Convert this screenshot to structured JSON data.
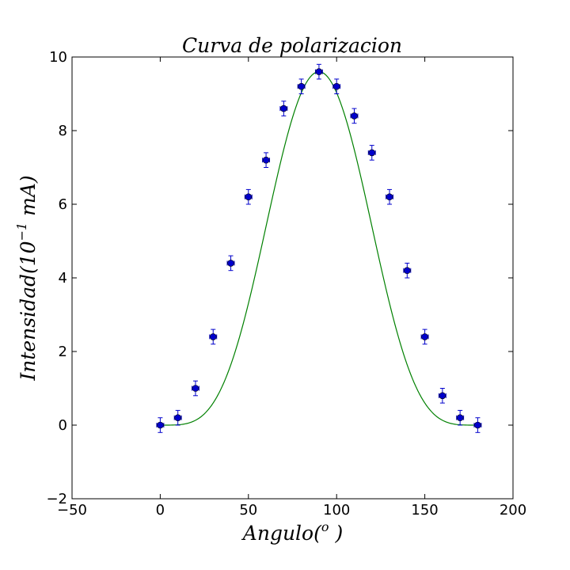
{
  "chart_data": {
    "type": "scatter",
    "title": "Curva de polarizacion",
    "xlabel": {
      "base": "Angulo(",
      "sup": "o",
      "tail": " )"
    },
    "ylabel": {
      "base": "Intensidad(10",
      "sup": "−1",
      "tail": " mA)"
    },
    "xlim": [
      -50,
      200
    ],
    "ylim": [
      -2,
      10
    ],
    "xticks": [
      -50,
      0,
      50,
      100,
      150,
      200
    ],
    "xtick_labels": [
      "−50",
      "0",
      "50",
      "100",
      "150",
      "200"
    ],
    "yticks": [
      -2,
      0,
      2,
      4,
      6,
      8,
      10
    ],
    "ytick_labels": [
      "−2",
      "0",
      "2",
      "4",
      "6",
      "8",
      "10"
    ],
    "grid": false,
    "series": [
      {
        "kind": "points-with-errorbars",
        "color": "#0000cc",
        "x": [
          0,
          10,
          20,
          30,
          40,
          50,
          60,
          70,
          80,
          90,
          100,
          110,
          120,
          130,
          140,
          150,
          160,
          170,
          180
        ],
        "y": [
          0,
          0.2,
          1.0,
          2.4,
          4.4,
          6.2,
          7.2,
          8.6,
          9.2,
          9.6,
          9.2,
          8.4,
          7.4,
          6.2,
          4.2,
          2.4,
          0.8,
          0.2,
          0
        ],
        "yerr": 0.2,
        "xerr": 2
      },
      {
        "kind": "fit-curve",
        "color": "#008000",
        "model": "A*sin^4",
        "amplitude": 9.6,
        "x_range": [
          0,
          180
        ]
      }
    ]
  }
}
